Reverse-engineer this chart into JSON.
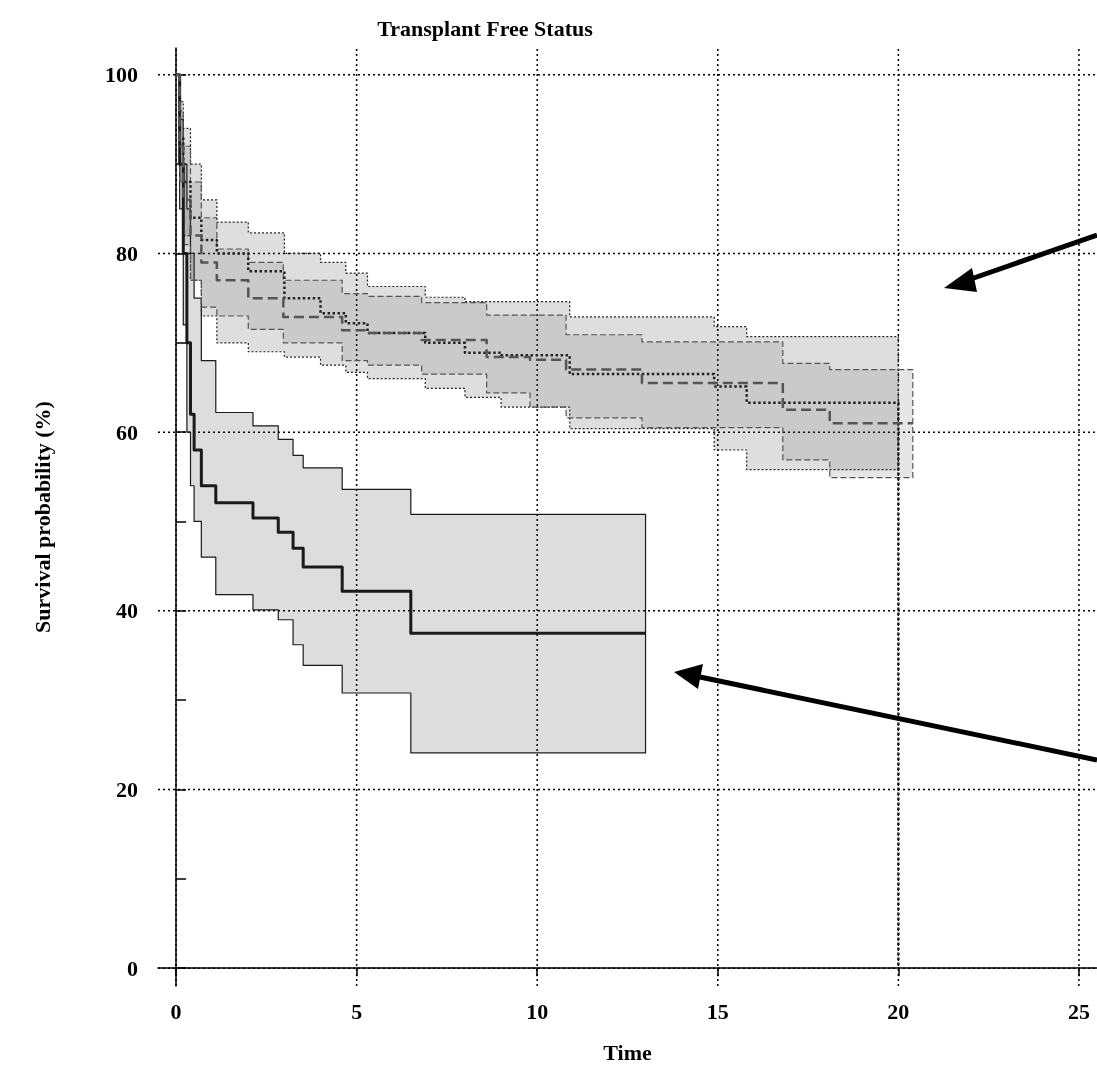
{
  "chart_data": {
    "type": "line",
    "title": "Transplant Free Status",
    "xlabel": "Time",
    "ylabel": "Survival probability (%)",
    "xlim": [
      -0.5,
      25.5
    ],
    "ylim": [
      -2,
      103
    ],
    "xticks": [
      0,
      5,
      10,
      15,
      20,
      25
    ],
    "yticks": [
      0,
      {
        "value": 10,
        "label": null
      },
      20,
      {
        "value": 30,
        "label": null
      },
      40,
      {
        "value": 50,
        "label": null
      },
      60,
      {
        "value": 70,
        "label": null
      },
      80,
      {
        "value": 90,
        "label": null
      },
      100
    ],
    "grid": true,
    "series": [
      {
        "color": "#1a1a1a",
        "line_style": "solid",
        "x": [
          0,
          0.1,
          0.1,
          0.2,
          0.2,
          0.3,
          0.3,
          0.4,
          0.4,
          0.5,
          0.5,
          0.7,
          0.7,
          1.1,
          1.1,
          2.13,
          2.13,
          2.83,
          2.83,
          3.24,
          3.24,
          3.52,
          3.52,
          4.6,
          4.6,
          6.5,
          6.5,
          13
        ],
        "values": [
          100,
          100,
          90,
          90,
          80,
          80,
          70,
          70,
          62,
          62,
          58,
          58,
          54,
          54,
          52.1,
          52.1,
          50.4,
          50.4,
          48.8,
          48.8,
          47,
          47,
          44.9,
          44.9,
          42.2,
          42.2,
          37.5,
          37.5
        ],
        "upper": [
          100,
          100,
          95,
          95,
          90,
          90,
          85,
          85,
          80,
          80,
          75,
          75,
          68,
          68,
          62.2,
          62.2,
          60.7,
          60.7,
          59.2,
          59.2,
          57.4,
          57.4,
          56,
          56,
          53.6,
          53.6,
          50.8,
          50.8
        ],
        "lower": [
          100,
          100,
          85,
          85,
          72,
          72,
          60,
          60,
          54,
          54,
          50,
          50,
          46,
          46,
          41.8,
          41.8,
          40.1,
          40.1,
          39,
          39,
          36.2,
          36.2,
          33.9,
          33.9,
          30.8,
          30.8,
          24.1,
          24.1
        ]
      },
      {
        "color": "#222222",
        "line_style": "dotted",
        "x": [
          0,
          0.1,
          0.1,
          0.2,
          0.2,
          0.4,
          0.4,
          0.7,
          0.7,
          1.13,
          1.13,
          2,
          2,
          3,
          3,
          4,
          4,
          4.7,
          4.7,
          5.3,
          5.3,
          6.9,
          6.9,
          8,
          8,
          9,
          9,
          10.9,
          10.9,
          14.9,
          14.9,
          15.8,
          15.8,
          20,
          20
        ],
        "values": [
          100,
          100,
          93,
          93,
          88,
          88,
          84,
          84,
          81.5,
          81.5,
          80,
          80,
          78,
          78,
          75,
          75,
          73.3,
          73.3,
          72.2,
          72.2,
          71.1,
          71.1,
          70,
          70,
          68.9,
          68.9,
          68.6,
          68.6,
          66.5,
          66.5,
          65.1,
          65.1,
          63.3,
          63.3,
          0
        ],
        "upper": [
          100,
          100,
          97,
          97,
          94,
          94,
          90,
          90,
          86,
          86,
          83.5,
          83.5,
          82.3,
          82.3,
          80,
          80,
          79,
          79,
          77.8,
          77.8,
          76.3,
          76.3,
          75.1,
          75.1,
          74.6,
          74.6,
          74.6,
          74.6,
          72.9,
          72.9,
          71.8,
          71.8,
          70.7,
          70.7,
          null
        ],
        "lower": [
          100,
          100,
          88,
          88,
          82,
          82,
          77,
          77,
          73,
          73,
          70,
          70,
          69,
          69,
          68.4,
          68.4,
          67.5,
          67.5,
          66.7,
          66.7,
          66,
          66,
          64.9,
          64.9,
          63.9,
          63.9,
          62.8,
          62.8,
          60.4,
          60.4,
          58,
          58,
          55.8,
          55.8,
          null
        ]
      },
      {
        "color": "#555555",
        "line_style": "dashed",
        "x": [
          0,
          0.1,
          0.1,
          0.2,
          0.2,
          0.4,
          0.4,
          0.7,
          0.7,
          1.13,
          1.13,
          2,
          2,
          2.97,
          2.97,
          4.6,
          4.6,
          5.3,
          5.3,
          6.8,
          6.8,
          8.6,
          8.6,
          9.8,
          9.8,
          10.8,
          10.8,
          12.9,
          12.9,
          16.8,
          16.8,
          18.1,
          18.1,
          20.4
        ],
        "values": [
          100,
          100,
          92,
          92,
          86,
          86,
          82,
          82,
          79,
          79,
          77,
          77,
          75,
          75,
          72.9,
          72.9,
          71.4,
          71.4,
          71.1,
          71.1,
          70.3,
          70.3,
          68.4,
          68.4,
          68.1,
          68.1,
          67,
          67,
          65.5,
          65.5,
          62.5,
          62.5,
          61,
          61
        ],
        "upper": [
          100,
          100,
          96,
          96,
          92,
          92,
          88,
          88,
          84,
          84,
          80.5,
          80.5,
          79,
          79,
          77,
          77,
          75.5,
          75.5,
          75.2,
          75.2,
          74.5,
          74.5,
          73.1,
          73.1,
          73.1,
          73.1,
          70.9,
          70.9,
          70.1,
          70.1,
          67.7,
          67.7,
          67,
          67
        ],
        "lower": [
          100,
          100,
          88,
          88,
          81,
          81,
          77,
          77,
          74,
          74,
          73,
          73,
          71.5,
          71.5,
          70,
          70,
          68,
          68,
          67.5,
          67.5,
          66.5,
          66.5,
          64.4,
          64.4,
          62.8,
          62.8,
          61.6,
          61.6,
          60.5,
          60.5,
          56.9,
          56.9,
          54.9,
          54.9
        ]
      }
    ]
  }
}
